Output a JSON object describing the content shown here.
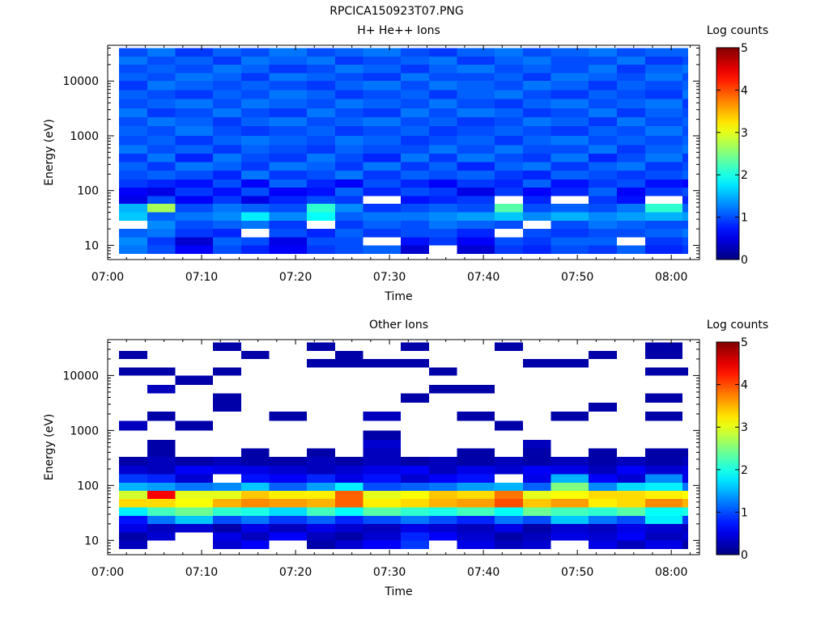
{
  "figure": {
    "title": "RPCICA150923T07.PNG"
  },
  "chart_data": [
    {
      "type": "heatmap",
      "title": "H+ He++ Ions",
      "xlabel": "Time",
      "ylabel": "Energy (eV)",
      "y_scale": "log",
      "x_ticks": [
        "07:00",
        "07:10",
        "07:20",
        "07:30",
        "07:40",
        "07:50",
        "08:00"
      ],
      "y_ticks": [
        "10",
        "100",
        "1000",
        "10000"
      ],
      "colorbar": {
        "label": "Log counts",
        "ticks": [
          "0",
          "1",
          "2",
          "3",
          "4",
          "5"
        ],
        "range": [
          0,
          5
        ]
      },
      "time_bins": [
        "07:00",
        "07:03",
        "07:06",
        "07:10",
        "07:13",
        "07:16",
        "07:20",
        "07:23",
        "07:26",
        "07:30",
        "07:33",
        "07:36",
        "07:40",
        "07:43",
        "07:46",
        "07:50",
        "07:53",
        "07:56",
        "08:00"
      ],
      "energy_bins_eV": [
        7,
        10,
        14,
        20,
        28,
        40,
        57,
        80,
        113,
        160,
        230,
        330,
        470,
        680,
        1000,
        1500,
        2200,
        3200,
        4700,
        6800,
        10000,
        14000,
        20000,
        28000,
        40000
      ],
      "log_counts": [
        [
          1.2,
          1.0,
          0.6,
          1.0,
          0.8,
          0.6,
          0.9,
          1.0,
          1.1,
          0.4,
          null,
          0.4,
          0.9,
          0.8,
          1.0,
          0.9,
          1.1,
          0.8,
          0.9
        ],
        [
          1.3,
          0.9,
          0.4,
          1.1,
          1.0,
          0.5,
          1.0,
          1.0,
          null,
          0.7,
          0.9,
          0.6,
          1.0,
          0.9,
          1.1,
          1.1,
          null,
          0.9,
          1.0
        ],
        [
          1.1,
          1.2,
          0.9,
          0.8,
          null,
          1.0,
          0.8,
          1.1,
          0.9,
          1.0,
          1.0,
          0.8,
          null,
          1.0,
          0.9,
          1.0,
          1.0,
          1.1,
          1.2
        ],
        [
          null,
          1.3,
          1.0,
          1.1,
          1.2,
          0.9,
          null,
          0.9,
          1.1,
          1.0,
          1.2,
          1.1,
          1.0,
          null,
          1.0,
          1.2,
          1.1,
          1.0,
          1.0
        ],
        [
          1.6,
          1.1,
          1.2,
          1.3,
          1.8,
          1.3,
          1.9,
          1.1,
          1.2,
          1.2,
          1.3,
          1.4,
          1.6,
          1.3,
          1.5,
          1.3,
          1.4,
          1.5,
          1.4
        ],
        [
          1.5,
          2.7,
          1.0,
          1.2,
          1.1,
          1.0,
          2.1,
          1.3,
          0.9,
          1.0,
          1.1,
          1.0,
          2.3,
          1.0,
          1.1,
          1.0,
          1.2,
          2.1,
          1.1
        ],
        [
          0.5,
          1.0,
          0.6,
          0.9,
          0.5,
          0.8,
          1.0,
          0.9,
          null,
          0.7,
          0.8,
          0.9,
          null,
          0.8,
          null,
          0.9,
          0.7,
          null,
          0.8
        ],
        [
          0.6,
          0.5,
          0.9,
          0.7,
          1.0,
          0.6,
          0.7,
          1.1,
          0.8,
          1.0,
          0.9,
          0.5,
          0.9,
          0.6,
          0.8,
          1.1,
          0.6,
          0.9,
          1.0
        ],
        [
          0.9,
          0.8,
          0.7,
          1.0,
          0.6,
          1.1,
          0.8,
          0.6,
          1.0,
          0.8,
          0.6,
          0.9,
          0.8,
          1.1,
          0.7,
          0.9,
          1.0,
          0.7,
          0.6
        ],
        [
          1.0,
          1.1,
          1.0,
          0.8,
          1.2,
          0.9,
          1.0,
          1.2,
          0.9,
          1.1,
          1.0,
          1.1,
          0.9,
          0.8,
          1.1,
          1.0,
          0.9,
          1.0,
          1.1
        ],
        [
          1.1,
          0.9,
          1.2,
          1.1,
          0.9,
          1.2,
          1.1,
          0.9,
          1.2,
          0.9,
          1.1,
          0.8,
          1.1,
          1.2,
          0.9,
          1.1,
          1.2,
          0.9,
          1.0
        ],
        [
          0.9,
          1.2,
          0.8,
          1.2,
          1.0,
          0.9,
          1.2,
          1.0,
          0.8,
          1.2,
          0.9,
          1.2,
          1.0,
          0.9,
          1.2,
          0.8,
          1.0,
          1.2,
          0.9
        ],
        [
          1.2,
          1.0,
          1.1,
          0.9,
          1.1,
          1.0,
          0.9,
          1.1,
          1.0,
          1.0,
          1.2,
          1.0,
          1.2,
          1.0,
          1.0,
          1.2,
          0.9,
          1.1,
          1.2
        ],
        [
          1.0,
          1.1,
          0.9,
          1.1,
          1.2,
          1.1,
          1.0,
          1.2,
          1.1,
          0.9,
          1.0,
          1.1,
          0.9,
          1.1,
          1.2,
          1.0,
          1.1,
          1.0,
          1.1
        ],
        [
          1.1,
          1.0,
          1.2,
          1.0,
          0.9,
          1.0,
          1.1,
          0.9,
          1.0,
          1.1,
          0.9,
          1.0,
          1.1,
          1.0,
          0.9,
          1.1,
          1.0,
          1.2,
          1.0
        ],
        [
          1.0,
          1.2,
          1.1,
          0.9,
          1.1,
          1.2,
          1.0,
          1.1,
          1.2,
          1.0,
          1.1,
          0.9,
          1.0,
          1.2,
          1.1,
          0.9,
          1.2,
          1.0,
          1.1
        ],
        [
          1.2,
          0.9,
          1.0,
          1.2,
          1.0,
          0.9,
          1.2,
          1.0,
          0.9,
          1.2,
          1.0,
          1.2,
          1.1,
          0.9,
          1.0,
          1.2,
          0.9,
          1.1,
          1.0
        ],
        [
          1.0,
          1.1,
          1.2,
          1.0,
          1.2,
          1.1,
          1.0,
          1.2,
          1.1,
          1.0,
          1.2,
          1.0,
          0.9,
          1.1,
          1.2,
          1.0,
          1.1,
          1.2,
          0.9
        ],
        [
          1.1,
          1.0,
          0.9,
          1.1,
          1.0,
          1.2,
          1.1,
          0.9,
          1.0,
          1.1,
          0.9,
          1.1,
          1.2,
          1.0,
          0.9,
          1.1,
          1.0,
          0.9,
          1.2
        ],
        [
          0.9,
          1.2,
          1.1,
          1.0,
          1.1,
          1.0,
          0.9,
          1.1,
          1.2,
          1.0,
          1.2,
          1.1,
          1.0,
          1.2,
          1.1,
          0.9,
          1.1,
          1.0,
          1.1
        ],
        [
          1.1,
          1.0,
          1.2,
          1.1,
          0.9,
          1.2,
          1.1,
          1.0,
          0.9,
          1.2,
          1.0,
          1.0,
          1.1,
          0.9,
          1.2,
          1.1,
          1.0,
          1.2,
          1.0
        ],
        [
          1.0,
          1.1,
          1.0,
          1.2,
          1.1,
          0.9,
          1.0,
          1.2,
          1.1,
          0.9,
          1.1,
          1.2,
          1.0,
          1.1,
          1.0,
          1.2,
          0.9,
          1.1,
          1.2
        ],
        [
          1.2,
          1.0,
          1.1,
          0.9,
          1.2,
          1.1,
          1.2,
          0.9,
          1.0,
          1.1,
          1.2,
          0.9,
          1.1,
          1.2,
          1.0,
          1.0,
          1.2,
          0.9,
          1.0
        ],
        [
          1.0,
          1.2,
          0.9,
          1.1,
          1.0,
          1.2,
          1.0,
          1.1,
          1.2,
          1.0,
          0.9,
          1.1,
          1.2,
          1.0,
          1.1,
          1.2,
          1.0,
          1.1,
          1.1
        ]
      ]
    },
    {
      "type": "heatmap",
      "title": "Other Ions",
      "xlabel": "Time",
      "ylabel": "Energy (eV)",
      "y_scale": "log",
      "x_ticks": [
        "07:00",
        "07:10",
        "07:20",
        "07:30",
        "07:40",
        "07:50",
        "08:00"
      ],
      "y_ticks": [
        "10",
        "100",
        "1000",
        "10000"
      ],
      "colorbar": {
        "label": "Log counts",
        "ticks": [
          "0",
          "1",
          "2",
          "3",
          "4",
          "5"
        ],
        "range": [
          0,
          5
        ]
      },
      "time_bins": [
        "07:00",
        "07:03",
        "07:06",
        "07:10",
        "07:13",
        "07:16",
        "07:20",
        "07:23",
        "07:26",
        "07:30",
        "07:33",
        "07:36",
        "07:40",
        "07:43",
        "07:46",
        "07:50",
        "07:53",
        "07:56",
        "08:00"
      ],
      "energy_bins_eV": [
        7,
        10,
        14,
        20,
        28,
        40,
        57,
        80,
        113,
        160,
        230,
        330,
        470,
        680,
        1000,
        1500,
        2200,
        3200,
        4700,
        6800,
        10000,
        14000,
        20000,
        28000,
        40000
      ],
      "log_counts": [
        [
          0.3,
          null,
          null,
          0.4,
          0.6,
          null,
          0.2,
          0.4,
          0.6,
          0.9,
          null,
          0.5,
          0.3,
          0.4,
          null,
          0.5,
          0.3,
          0.5,
          0.2
        ],
        [
          0.2,
          0.4,
          null,
          0.5,
          0.3,
          0.6,
          0.3,
          0.2,
          0.4,
          0.8,
          0.6,
          0.4,
          0.2,
          0.3,
          0.5,
          0.4,
          0.6,
          0.3,
          0.4
        ],
        [
          0.5,
          0.3,
          0.4,
          0.2,
          0.5,
          0.3,
          0.5,
          0.4,
          0.3,
          0.5,
          0.4,
          0.3,
          0.5,
          0.2,
          0.4,
          0.3,
          0.5,
          0.4,
          0.3
        ],
        [
          0.7,
          1.2,
          1.6,
          1.0,
          1.2,
          0.9,
          1.1,
          0.8,
          1.0,
          1.2,
          1.0,
          0.8,
          1.2,
          1.0,
          1.6,
          1.2,
          1.0,
          1.8,
          0.9
        ],
        [
          1.8,
          2.2,
          2.4,
          2.1,
          2.0,
          1.7,
          2.2,
          1.9,
          2.3,
          2.1,
          2.0,
          2.2,
          1.9,
          2.4,
          2.2,
          2.1,
          2.3,
          1.9,
          2.0
        ],
        [
          3.3,
          3.3,
          3.1,
          3.5,
          3.7,
          3.6,
          3.5,
          3.9,
          3.2,
          3.3,
          3.5,
          3.6,
          4.0,
          3.4,
          3.6,
          3.2,
          3.3,
          3.7,
          3.5
        ],
        [
          2.9,
          4.4,
          3.0,
          3.0,
          3.4,
          3.2,
          3.2,
          3.9,
          3.0,
          3.1,
          3.4,
          3.3,
          3.8,
          3.0,
          3.1,
          3.3,
          3.3,
          3.2,
          3.1
        ],
        [
          1.5,
          1.4,
          1.2,
          1.3,
          1.6,
          1.1,
          1.4,
          1.8,
          1.0,
          1.1,
          1.2,
          1.4,
          1.5,
          1.1,
          2.5,
          1.3,
          1.7,
          1.8,
          1.2
        ],
        [
          0.9,
          0.8,
          0.4,
          null,
          0.7,
          0.6,
          0.8,
          0.5,
          0.7,
          0.4,
          0.6,
          0.7,
          null,
          0.5,
          1.5,
          0.6,
          0.4,
          1.3,
          0.5
        ],
        [
          0.4,
          0.3,
          0.6,
          0.5,
          0.5,
          0.4,
          0.3,
          0.4,
          0.5,
          0.6,
          0.3,
          0.5,
          0.4,
          0.6,
          0.5,
          0.3,
          0.6,
          0.4,
          0.5
        ],
        [
          0.2,
          0.3,
          0.2,
          0.3,
          0.2,
          0.2,
          0.3,
          0.2,
          0.3,
          0.2,
          0.3,
          0.2,
          0.3,
          0.2,
          0.3,
          0.2,
          0.3,
          0.2,
          0.3
        ],
        [
          null,
          0.2,
          null,
          null,
          0.2,
          null,
          0.2,
          null,
          0.3,
          null,
          null,
          0.2,
          null,
          0.2,
          null,
          0.2,
          null,
          0.2,
          0.2
        ],
        [
          null,
          0.2,
          null,
          null,
          null,
          null,
          null,
          null,
          0.4,
          null,
          null,
          null,
          null,
          0.3,
          null,
          null,
          null,
          null,
          null
        ],
        [
          null,
          null,
          null,
          null,
          null,
          null,
          null,
          null,
          0.2,
          null,
          null,
          null,
          null,
          null,
          null,
          null,
          null,
          null,
          null
        ],
        [
          0.3,
          null,
          0.2,
          null,
          null,
          null,
          null,
          null,
          null,
          null,
          null,
          null,
          0.2,
          null,
          null,
          null,
          null,
          null,
          null
        ],
        [
          null,
          0.2,
          null,
          null,
          null,
          0.2,
          null,
          null,
          0.3,
          null,
          null,
          0.2,
          null,
          null,
          0.2,
          null,
          null,
          0.2,
          null
        ],
        [
          null,
          null,
          null,
          0.2,
          null,
          null,
          null,
          null,
          null,
          null,
          null,
          null,
          null,
          null,
          null,
          0.2,
          null,
          null,
          null
        ],
        [
          null,
          null,
          null,
          0.2,
          null,
          null,
          null,
          null,
          null,
          0.2,
          null,
          null,
          null,
          null,
          null,
          null,
          null,
          0.2,
          null
        ],
        [
          null,
          0.3,
          null,
          null,
          null,
          null,
          null,
          null,
          null,
          null,
          0.2,
          0.2,
          null,
          null,
          null,
          null,
          null,
          null,
          null
        ],
        [
          null,
          null,
          0.2,
          null,
          null,
          null,
          null,
          null,
          null,
          null,
          null,
          null,
          null,
          null,
          null,
          null,
          null,
          null,
          null
        ],
        [
          0.2,
          0.2,
          null,
          0.2,
          null,
          null,
          null,
          null,
          null,
          null,
          0.2,
          null,
          null,
          null,
          null,
          null,
          null,
          0.2,
          0.2
        ],
        [
          null,
          null,
          null,
          null,
          null,
          null,
          0.2,
          0.2,
          0.2,
          0.2,
          null,
          null,
          null,
          0.2,
          0.2,
          null,
          null,
          null,
          null
        ],
        [
          0.2,
          null,
          null,
          null,
          0.2,
          null,
          null,
          0.2,
          null,
          null,
          null,
          null,
          null,
          null,
          null,
          0.2,
          null,
          0.2,
          null
        ],
        [
          null,
          null,
          null,
          0.2,
          null,
          null,
          0.2,
          null,
          null,
          0.2,
          null,
          null,
          0.2,
          null,
          null,
          null,
          null,
          0.2,
          null
        ]
      ]
    }
  ]
}
